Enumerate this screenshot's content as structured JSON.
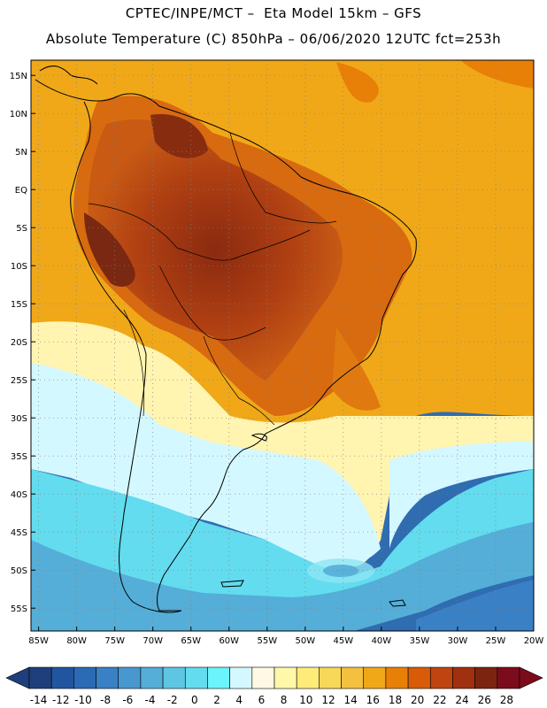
{
  "header": {
    "line1": "CPTEC/INPE/MCT –  Eta Model 15km – GFS",
    "line2": "Absolute Temperature (C) 850hPa – 06/06/2020 12UTC fct=253h"
  },
  "axes": {
    "lat_labels": [
      "15N",
      "10N",
      "5N",
      "EQ",
      "5S",
      "10S",
      "15S",
      "20S",
      "25S",
      "30S",
      "35S",
      "40S",
      "45S",
      "50S",
      "55S"
    ],
    "lon_labels": [
      "85W",
      "80W",
      "75W",
      "70W",
      "65W",
      "60W",
      "55W",
      "50W",
      "45W",
      "40W",
      "35W",
      "30W",
      "25W",
      "20W"
    ],
    "lat_range": [
      17,
      -58
    ],
    "lon_range": [
      -86,
      -20
    ]
  },
  "colorbar": {
    "labels": [
      "-14",
      "-12",
      "-10",
      "-8",
      "-6",
      "-4",
      "-2",
      "0",
      "2",
      "4",
      "6",
      "8",
      "10",
      "12",
      "14",
      "16",
      "18",
      "20",
      "22",
      "24",
      "26",
      "28"
    ],
    "colors": [
      "#1f3f7c",
      "#2255a0",
      "#2b6ab4",
      "#3a80c4",
      "#4898cf",
      "#54aed8",
      "#5ec6e2",
      "#62dcee",
      "#6cf4fc",
      "#d4f8ff",
      "#fff8e4",
      "#fff8a8",
      "#ffec78",
      "#f8d858",
      "#f4c040",
      "#f0a818",
      "#e88008",
      "#d85c08",
      "#c04410",
      "#a03010",
      "#7c2410",
      "#7c0c1c"
    ],
    "min_color": "#1f3f7c",
    "max_color": "#7c0c1c"
  }
}
